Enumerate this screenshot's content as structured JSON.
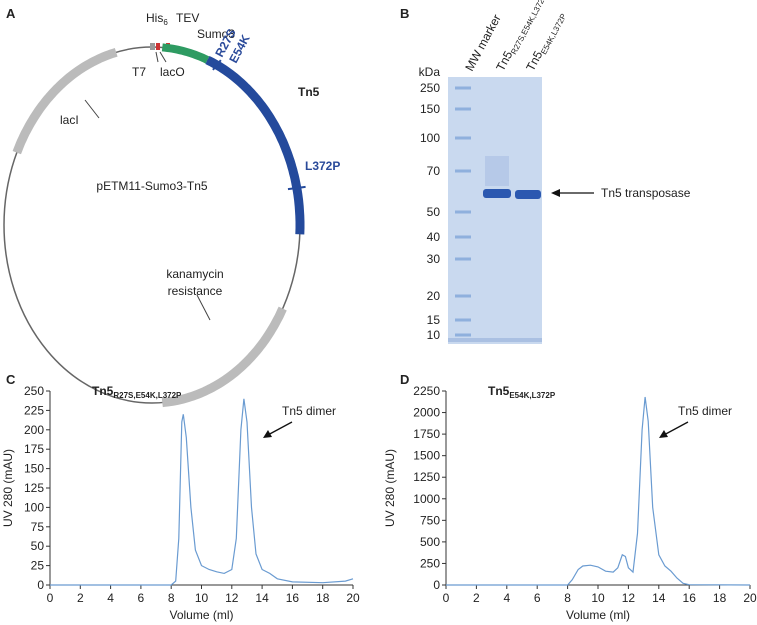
{
  "panels": [
    "A",
    "B",
    "C",
    "D"
  ],
  "plasmid": {
    "name": "pETM11-Sumo3-Tn5",
    "his": "His",
    "his_sub": "6",
    "tev": "TEV",
    "sumo3": "Sumo3",
    "t7": "T7",
    "laco": "lacO",
    "r27s": "R27S",
    "e54k": "E54K",
    "tn5": "Tn5",
    "l372p": "L372P",
    "laci": "lacI",
    "kan1": "kanamycin",
    "kan2": "resistance"
  },
  "gel": {
    "unit": "kDa",
    "markers": [
      "250",
      "150",
      "100",
      "70",
      "50",
      "40",
      "30",
      "20",
      "15",
      "10"
    ],
    "lanes": [
      {
        "text": "MW marker"
      },
      {
        "text": "Tn5",
        "sub": "R27S,E54K,L372P"
      },
      {
        "text": "Tn5",
        "sub": "E54K,L372P"
      }
    ],
    "band_label": "Tn5 transposase"
  },
  "chart_data": [
    {
      "type": "line",
      "title": "Tn5",
      "title_sub": "R27S,E54K,L372P",
      "annotation": "Tn5 dimer",
      "xlabel": "Volume (ml)",
      "ylabel": "UV 280 (mAU)",
      "color": "#6a9bd1",
      "x": [
        0,
        8,
        8.3,
        8.5,
        8.7,
        8.8,
        9,
        9.3,
        9.6,
        10,
        10.5,
        11,
        11.5,
        12,
        12.3,
        12.6,
        12.8,
        13,
        13.3,
        13.6,
        14,
        14.5,
        15,
        16,
        18,
        19.5,
        20
      ],
      "values": [
        0,
        0,
        5,
        60,
        210,
        220,
        190,
        100,
        45,
        25,
        20,
        17,
        15,
        20,
        60,
        200,
        240,
        210,
        100,
        40,
        20,
        15,
        8,
        4,
        3,
        5,
        8
      ],
      "xlim": [
        0,
        20
      ],
      "xticks": [
        0,
        2,
        4,
        6,
        8,
        10,
        12,
        14,
        16,
        18,
        20
      ],
      "ylim": [
        0,
        250
      ],
      "yticks": [
        0,
        25,
        50,
        75,
        100,
        125,
        150,
        175,
        200,
        225,
        250
      ]
    },
    {
      "type": "line",
      "title": "Tn5",
      "title_sub": "E54K,L372P",
      "annotation": "Tn5 dimer",
      "xlabel": "Volume (ml)",
      "ylabel": "UV 280 (mAU)",
      "color": "#6a9bd1",
      "x": [
        0,
        8,
        8.3,
        8.7,
        9,
        9.5,
        10,
        10.5,
        11,
        11.3,
        11.6,
        11.8,
        12,
        12.3,
        12.6,
        12.9,
        13.1,
        13.3,
        13.6,
        14,
        14.4,
        14.8,
        15.2,
        15.6,
        16,
        20
      ],
      "values": [
        0,
        0,
        60,
        180,
        220,
        230,
        210,
        160,
        150,
        200,
        350,
        330,
        200,
        150,
        600,
        1800,
        2180,
        1900,
        900,
        350,
        220,
        160,
        80,
        20,
        3,
        0
      ],
      "xlim": [
        0,
        20
      ],
      "xticks": [
        0,
        2,
        4,
        6,
        8,
        10,
        12,
        14,
        16,
        18,
        20
      ],
      "ylim": [
        0,
        2250
      ],
      "yticks": [
        0,
        250,
        500,
        750,
        1000,
        1250,
        1500,
        1750,
        2000,
        2250
      ]
    }
  ]
}
